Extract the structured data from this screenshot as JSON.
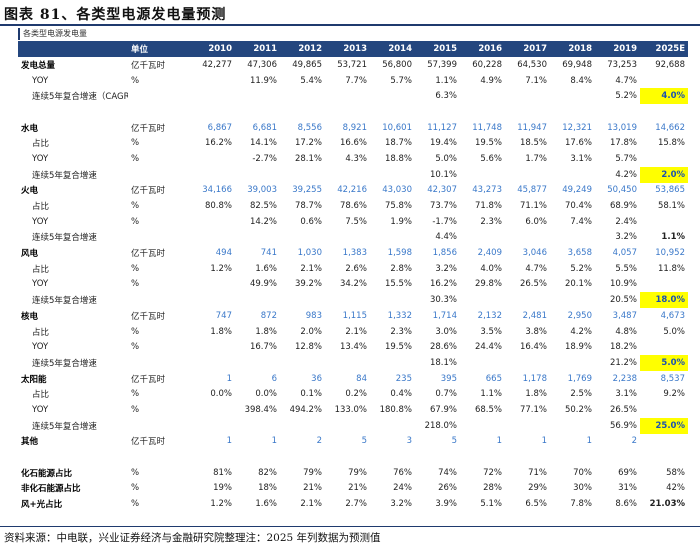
{
  "title": "图表 81、各类型电源发电量预测",
  "subtitle": "各类型电源发电量",
  "header": [
    "",
    "单位",
    "2010",
    "2011",
    "2012",
    "2013",
    "2014",
    "2015",
    "2016",
    "2017",
    "2018",
    "2019",
    "2025E"
  ],
  "rows": [
    {
      "cls": "cat",
      "cells": [
        "发电总量",
        "亿千瓦时",
        "42,277",
        "47,306",
        "49,865",
        "53,721",
        "56,800",
        "57,399",
        "60,228",
        "64,530",
        "69,948",
        "73,253",
        "92,688"
      ]
    },
    {
      "cls": "sub",
      "cells": [
        "YOY",
        "%",
        "",
        "11.9%",
        "5.4%",
        "7.7%",
        "5.7%",
        "1.1%",
        "4.9%",
        "7.1%",
        "8.4%",
        "4.7%",
        ""
      ]
    },
    {
      "cls": "sub",
      "cells": [
        "连续5年复合增速（CAGR)",
        "",
        "",
        "",
        "",
        "",
        "",
        "6.3%",
        "",
        "",
        "",
        "5.2%",
        "4.0%"
      ],
      "yellow": true
    },
    {
      "cls": "blank",
      "cells": [
        "",
        "",
        "",
        "",
        "",
        "",
        "",
        "",
        "",
        "",
        "",
        "",
        ""
      ]
    },
    {
      "cls": "cat blue",
      "cells": [
        "水电",
        "亿千瓦时",
        "6,867",
        "6,681",
        "8,556",
        "8,921",
        "10,601",
        "11,127",
        "11,748",
        "11,947",
        "12,321",
        "13,019",
        "14,662"
      ]
    },
    {
      "cls": "sub",
      "cells": [
        "占比",
        "%",
        "16.2%",
        "14.1%",
        "17.2%",
        "16.6%",
        "18.7%",
        "19.4%",
        "19.5%",
        "18.5%",
        "17.6%",
        "17.8%",
        "15.8%"
      ]
    },
    {
      "cls": "sub",
      "cells": [
        "YOY",
        "%",
        "",
        "-2.7%",
        "28.1%",
        "4.3%",
        "18.8%",
        "5.0%",
        "5.6%",
        "1.7%",
        "3.1%",
        "5.7%",
        ""
      ]
    },
    {
      "cls": "sub",
      "cells": [
        "连续5年复合增速",
        "",
        "",
        "",
        "",
        "",
        "",
        "10.1%",
        "",
        "",
        "",
        "4.2%",
        "2.0%"
      ],
      "yellow": true
    },
    {
      "cls": "cat blue",
      "cells": [
        "火电",
        "亿千瓦时",
        "34,166",
        "39,003",
        "39,255",
        "42,216",
        "43,030",
        "42,307",
        "43,273",
        "45,877",
        "49,249",
        "50,450",
        "53,865"
      ]
    },
    {
      "cls": "sub",
      "cells": [
        "占比",
        "%",
        "80.8%",
        "82.5%",
        "78.7%",
        "78.6%",
        "75.8%",
        "73.7%",
        "71.8%",
        "71.1%",
        "70.4%",
        "68.9%",
        "58.1%"
      ]
    },
    {
      "cls": "sub",
      "cells": [
        "YOY",
        "%",
        "",
        "14.2%",
        "0.6%",
        "7.5%",
        "1.9%",
        "-1.7%",
        "2.3%",
        "6.0%",
        "7.4%",
        "2.4%",
        ""
      ]
    },
    {
      "cls": "sub",
      "cells": [
        "连续5年复合增速",
        "",
        "",
        "",
        "",
        "",
        "",
        "4.4%",
        "",
        "",
        "",
        "3.2%",
        "1.1%"
      ],
      "boldlast": true
    },
    {
      "cls": "cat blue",
      "cells": [
        "风电",
        "亿千瓦时",
        "494",
        "741",
        "1,030",
        "1,383",
        "1,598",
        "1,856",
        "2,409",
        "3,046",
        "3,658",
        "4,057",
        "10,952"
      ]
    },
    {
      "cls": "sub",
      "cells": [
        "占比",
        "%",
        "1.2%",
        "1.6%",
        "2.1%",
        "2.6%",
        "2.8%",
        "3.2%",
        "4.0%",
        "4.7%",
        "5.2%",
        "5.5%",
        "11.8%"
      ]
    },
    {
      "cls": "sub",
      "cells": [
        "YOY",
        "%",
        "",
        "49.9%",
        "39.2%",
        "34.2%",
        "15.5%",
        "16.2%",
        "29.8%",
        "26.5%",
        "20.1%",
        "10.9%",
        ""
      ]
    },
    {
      "cls": "sub",
      "cells": [
        "连续5年复合增速",
        "",
        "",
        "",
        "",
        "",
        "",
        "30.3%",
        "",
        "",
        "",
        "20.5%",
        "18.0%"
      ],
      "yellow": true
    },
    {
      "cls": "cat blue",
      "cells": [
        "核电",
        "亿千瓦时",
        "747",
        "872",
        "983",
        "1,115",
        "1,332",
        "1,714",
        "2,132",
        "2,481",
        "2,950",
        "3,487",
        "4,673"
      ]
    },
    {
      "cls": "sub",
      "cells": [
        "占比",
        "%",
        "1.8%",
        "1.8%",
        "2.0%",
        "2.1%",
        "2.3%",
        "3.0%",
        "3.5%",
        "3.8%",
        "4.2%",
        "4.8%",
        "5.0%"
      ]
    },
    {
      "cls": "sub",
      "cells": [
        "YOY",
        "%",
        "",
        "16.7%",
        "12.8%",
        "13.4%",
        "19.5%",
        "28.6%",
        "24.4%",
        "16.4%",
        "18.9%",
        "18.2%",
        ""
      ]
    },
    {
      "cls": "sub",
      "cells": [
        "连续5年复合增速",
        "",
        "",
        "",
        "",
        "",
        "",
        "18.1%",
        "",
        "",
        "",
        "21.2%",
        "5.0%"
      ],
      "yellow": true
    },
    {
      "cls": "cat blue",
      "cells": [
        "太阳能",
        "亿千瓦时",
        "1",
        "6",
        "36",
        "84",
        "235",
        "395",
        "665",
        "1,178",
        "1,769",
        "2,238",
        "8,537"
      ]
    },
    {
      "cls": "sub",
      "cells": [
        "占比",
        "%",
        "0.0%",
        "0.0%",
        "0.1%",
        "0.2%",
        "0.4%",
        "0.7%",
        "1.1%",
        "1.8%",
        "2.5%",
        "3.1%",
        "9.2%"
      ]
    },
    {
      "cls": "sub",
      "cells": [
        "YOY",
        "%",
        "",
        "398.4%",
        "494.2%",
        "133.0%",
        "180.8%",
        "67.9%",
        "68.5%",
        "77.1%",
        "50.2%",
        "26.5%",
        ""
      ]
    },
    {
      "cls": "sub",
      "cells": [
        "连续5年复合增速",
        "",
        "",
        "",
        "",
        "",
        "",
        "218.0%",
        "",
        "",
        "",
        "56.9%",
        "25.0%"
      ],
      "yellow": true
    },
    {
      "cls": "cat blue",
      "cells": [
        "其他",
        "亿千瓦时",
        "1",
        "1",
        "2",
        "5",
        "3",
        "5",
        "1",
        "1",
        "1",
        "2",
        ""
      ]
    },
    {
      "cls": "blank",
      "cells": [
        "",
        "",
        "",
        "",
        "",
        "",
        "",
        "",
        "",
        "",
        "",
        "",
        ""
      ]
    },
    {
      "cls": "cat",
      "cells": [
        "化石能源占比",
        "%",
        "81%",
        "82%",
        "79%",
        "79%",
        "76%",
        "74%",
        "72%",
        "71%",
        "70%",
        "69%",
        "58%"
      ]
    },
    {
      "cls": "cat",
      "cells": [
        "非化石能源占比",
        "%",
        "19%",
        "18%",
        "21%",
        "21%",
        "24%",
        "26%",
        "28%",
        "29%",
        "30%",
        "31%",
        "42%"
      ]
    },
    {
      "cls": "cat",
      "cells": [
        "风+光占比",
        "%",
        "1.2%",
        "1.6%",
        "2.1%",
        "2.7%",
        "3.2%",
        "3.9%",
        "5.1%",
        "6.5%",
        "7.8%",
        "8.6%",
        "21.03%"
      ],
      "boldlast": true
    }
  ],
  "footer": "资料来源：中电联，兴业证券经济与金融研究院整理注：2025 年列数据为预测值"
}
